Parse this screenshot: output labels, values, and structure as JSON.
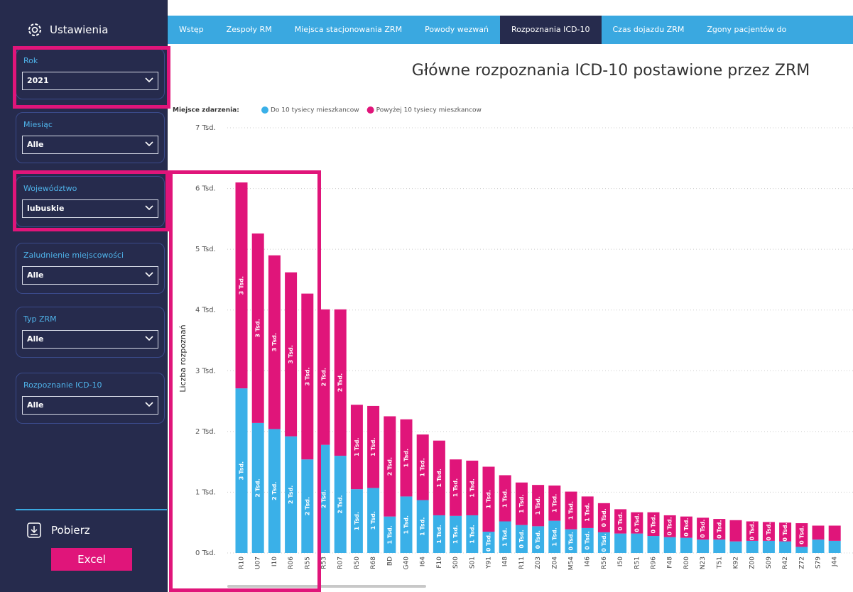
{
  "sidebar": {
    "title": "Ustawienia",
    "filters": [
      {
        "label": "Rok",
        "value": "2021"
      },
      {
        "label": "Miesiąc",
        "value": "Alle"
      },
      {
        "label": "Województwo",
        "value": "lubuskie"
      },
      {
        "label": "Zaludnienie miejscowości",
        "value": "Alle"
      },
      {
        "label": "Typ ZRM",
        "value": "Alle"
      },
      {
        "label": "Rozpoznanie ICD-10",
        "value": "Alle"
      }
    ],
    "download": "Pobierz",
    "button": "Excel"
  },
  "tabs": {
    "items": [
      "Wstęp",
      "Zespoły RM",
      "Miejsca stacjonowania ZRM",
      "Powody wezwań",
      "Rozpoznania ICD-10",
      "Czas dojazdu ZRM",
      "Zgony pacjentów do"
    ],
    "active": 4
  },
  "chart_data": {
    "type": "stacked_bar",
    "title": "Główne rozpoznania ICD-10 postawione przez ZRM",
    "legend_title": "Miejsce zdarzenia:",
    "y_label": "Liczba rozpoznań",
    "categories": [
      "R10",
      "U07",
      "I10",
      "R06",
      "R55",
      "R53",
      "R07",
      "R50",
      "R68",
      "BD",
      "G40",
      "I64",
      "F10",
      "S00",
      "S01",
      "Y91",
      "I48",
      "R11",
      "Z03",
      "Z04",
      "M54",
      "I46",
      "R56",
      "I50",
      "R51",
      "R96",
      "F48",
      "R00",
      "N23",
      "T51",
      "K92",
      "Z00",
      "S09",
      "R42",
      "Z72",
      "S79",
      "J44"
    ],
    "series": [
      {
        "name": "Do 10 tysiecy mieszkancow",
        "color": "#3ab0e8",
        "values": [
          2710,
          2140,
          2040,
          1920,
          1540,
          1780,
          1600,
          1050,
          1070,
          600,
          930,
          870,
          620,
          610,
          620,
          350,
          520,
          460,
          440,
          530,
          390,
          410,
          340,
          320,
          320,
          280,
          260,
          250,
          220,
          220,
          190,
          200,
          200,
          190,
          100,
          220,
          200
        ],
        "value_labels": [
          "3 Tsd.",
          "2 Tsd.",
          "2 Tsd.",
          "2 Tsd.",
          "2 Tsd.",
          "2 Tsd.",
          "2 Tsd.",
          "1 Tsd.",
          "1 Tsd.",
          "1 Tsd.",
          "1 Tsd.",
          "1 Tsd.",
          "1 Tsd.",
          "1 Tsd.",
          "1 Tsd.",
          "0 Tsd.",
          "1 Tsd.",
          "0 Tsd.",
          "0 Tsd.",
          "1 Tsd.",
          "0 Tsd.",
          "0 Tsd.",
          "0 Tsd.",
          null,
          null,
          null,
          null,
          null,
          null,
          null,
          null,
          null,
          null,
          null,
          null,
          null,
          null
        ]
      },
      {
        "name": "Powyżej 10 tysiecy mieszkancow",
        "color": "#e0157a",
        "values": [
          3390,
          3120,
          2860,
          2700,
          2730,
          2230,
          2410,
          1390,
          1350,
          1650,
          1270,
          1080,
          1230,
          930,
          900,
          1070,
          760,
          700,
          680,
          580,
          620,
          520,
          480,
          400,
          350,
          390,
          360,
          350,
          360,
          340,
          350,
          320,
          310,
          310,
          390,
          230,
          250
        ],
        "value_labels": [
          "3 Tsd.",
          "3 Tsd.",
          "3 Tsd.",
          "3 Tsd.",
          "3 Tsd.",
          "2 Tsd.",
          "2 Tsd.",
          "1 Tsd.",
          "1 Tsd.",
          "2 Tsd.",
          "1 Tsd.",
          "1 Tsd.",
          "1 Tsd.",
          "1 Tsd.",
          "1 Tsd.",
          "1 Tsd.",
          "1 Tsd.",
          "1 Tsd.",
          "1 Tsd.",
          "1 Tsd.",
          "1 Tsd.",
          "1 Tsd.",
          "0 Tsd.",
          "0 Tsd.",
          "0 Tsd.",
          "0 Tsd.",
          "0 Tsd.",
          "0 Tsd.",
          "0 Tsd.",
          "0 Tsd.",
          null,
          "0 Tsd.",
          "0 Tsd.",
          "0 Tsd.",
          "0 Tsd.",
          null,
          null
        ]
      }
    ],
    "ylim": [
      0,
      7000
    ],
    "yticks": [
      {
        "value": 0,
        "label": "0 Tsd."
      },
      {
        "value": 1000,
        "label": "1 Tsd."
      },
      {
        "value": 2000,
        "label": "2 Tsd."
      },
      {
        "value": 3000,
        "label": "3 Tsd."
      },
      {
        "value": 4000,
        "label": "4 Tsd."
      },
      {
        "value": 5000,
        "label": "5 Tsd."
      },
      {
        "value": 6000,
        "label": "6 Tsd."
      },
      {
        "value": 7000,
        "label": "7 Tsd."
      }
    ],
    "grid": true
  }
}
